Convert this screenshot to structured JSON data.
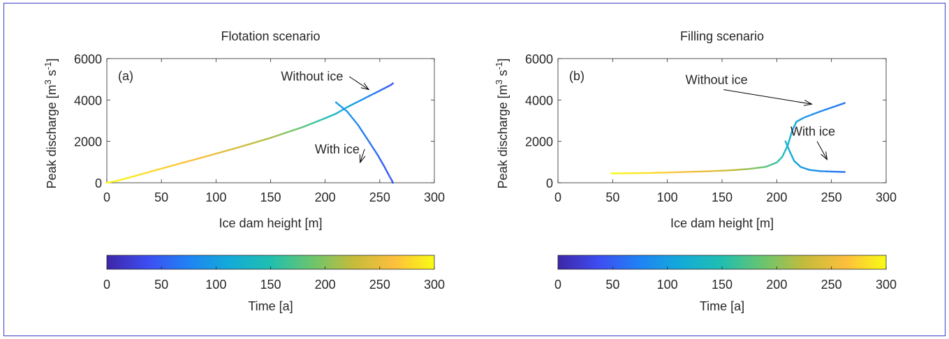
{
  "chart_data": [
    {
      "type": "scatter",
      "panel_label": "(a)",
      "title": "Flotation scenario",
      "xlabel": "Ice dam height [m]",
      "ylabel_main": "Peak discharge [m",
      "ylabel_sup1": "3",
      "ylabel_mid": " s",
      "ylabel_sup2": "-1",
      "ylabel_end": "]",
      "xlim": [
        0,
        300
      ],
      "ylim": [
        0,
        6000
      ],
      "xticks": [
        "0",
        "50",
        "100",
        "150",
        "200",
        "250",
        "300"
      ],
      "yticks": [
        "0",
        "2000",
        "4000",
        "6000"
      ],
      "grid": false,
      "annotations": [
        {
          "text": "Without ice",
          "x": 188,
          "y": 4930,
          "target": [
            240,
            4500
          ]
        },
        {
          "text": "With ice",
          "x": 211,
          "y": 1420,
          "target": [
            232,
            980
          ]
        }
      ],
      "series": [
        {
          "name": "Without ice",
          "color_by": "time",
          "x": [
            0,
            10,
            30,
            60,
            90,
            120,
            150,
            180,
            200,
            210,
            220,
            235,
            250,
            260,
            262
          ],
          "y": [
            0,
            100,
            390,
            830,
            1260,
            1700,
            2170,
            2700,
            3120,
            3340,
            3650,
            4050,
            4450,
            4720,
            4800
          ],
          "time": [
            300,
            295,
            285,
            270,
            255,
            235,
            215,
            180,
            150,
            130,
            110,
            85,
            60,
            45,
            40
          ]
        },
        {
          "name": "With ice",
          "color_by": "time",
          "x": [
            210,
            220,
            230,
            240,
            248,
            254,
            258,
            261,
            262
          ],
          "y": [
            3880,
            3450,
            2800,
            2000,
            1350,
            800,
            400,
            120,
            0
          ],
          "time": [
            100,
            88,
            76,
            64,
            56,
            50,
            46,
            43,
            42
          ]
        }
      ]
    },
    {
      "type": "scatter",
      "panel_label": "(b)",
      "title": "Filling scenario",
      "xlabel": "Ice dam height [m]",
      "ylabel_main": "Peak discharge [m",
      "ylabel_sup1": "3",
      "ylabel_mid": " s",
      "ylabel_sup2": "-1",
      "ylabel_end": "]",
      "xlim": [
        0,
        300
      ],
      "ylim": [
        0,
        6000
      ],
      "xticks": [
        "0",
        "50",
        "100",
        "150",
        "200",
        "250",
        "300"
      ],
      "yticks": [
        "0",
        "2000",
        "4000",
        "6000"
      ],
      "grid": false,
      "annotations": [
        {
          "text": "Without ice",
          "x": 145,
          "y": 4770,
          "target": [
            232,
            3800
          ]
        },
        {
          "text": "With ice",
          "x": 233,
          "y": 2270,
          "target": [
            246,
            1120
          ]
        }
      ],
      "series": [
        {
          "name": "Without ice",
          "color_by": "time",
          "x": [
            49,
            80,
            110,
            140,
            160,
            175,
            190,
            200,
            205,
            210,
            214,
            218,
            225,
            240,
            262
          ],
          "y": [
            450,
            470,
            510,
            560,
            610,
            670,
            770,
            980,
            1250,
            1800,
            2500,
            2950,
            3150,
            3450,
            3850
          ],
          "time": [
            300,
            285,
            265,
            245,
            225,
            205,
            180,
            160,
            145,
            125,
            115,
            105,
            95,
            80,
            60
          ]
        },
        {
          "name": "With ice",
          "color_by": "time",
          "x": [
            208,
            212,
            216,
            222,
            230,
            240,
            250,
            262
          ],
          "y": [
            2000,
            1500,
            1050,
            760,
            620,
            560,
            540,
            520
          ],
          "time": [
            128,
            118,
            108,
            98,
            90,
            80,
            70,
            60
          ]
        }
      ]
    }
  ],
  "colorbars": [
    {
      "label": "Time [a]",
      "ticks": [
        "0",
        "50",
        "100",
        "150",
        "200",
        "250",
        "300"
      ],
      "range": [
        0,
        300
      ],
      "colormap": [
        "#3e26a8",
        "#3d4df1",
        "#1f83f4",
        "#13abd8",
        "#20bfb0",
        "#6ac56e",
        "#c3bc3b",
        "#fdbe3d",
        "#f9fb15"
      ]
    },
    {
      "label": "Time [a]",
      "ticks": [
        "0",
        "50",
        "100",
        "150",
        "200",
        "250",
        "300"
      ],
      "range": [
        0,
        300
      ],
      "colormap": [
        "#3e26a8",
        "#3d4df1",
        "#1f83f4",
        "#13abd8",
        "#20bfb0",
        "#6ac56e",
        "#c3bc3b",
        "#fdbe3d",
        "#f9fb15"
      ]
    }
  ]
}
